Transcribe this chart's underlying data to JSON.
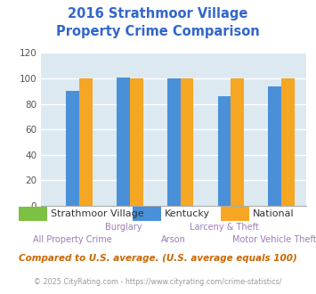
{
  "title_line1": "2016 Strathmoor Village",
  "title_line2": "Property Crime Comparison",
  "title_color": "#3366cc",
  "categories": [
    "All Property Crime",
    "Burglary",
    "Arson",
    "Larceny & Theft",
    "Motor Vehicle Theft"
  ],
  "upper_labels": [
    "",
    "Burglary",
    "",
    "Larceny & Theft",
    ""
  ],
  "lower_labels": [
    "All Property Crime",
    "",
    "Arson",
    "",
    "Motor Vehicle Theft"
  ],
  "series_names": [
    "Strathmoor Village",
    "Kentucky",
    "National"
  ],
  "series": {
    "Strathmoor Village": {
      "values": [
        0,
        0,
        0,
        0,
        0
      ],
      "color": "#7dc142"
    },
    "Kentucky": {
      "values": [
        90,
        101,
        100,
        86,
        94
      ],
      "color": "#4a90d9"
    },
    "National": {
      "values": [
        100,
        100,
        100,
        100,
        100
      ],
      "color": "#f5a623"
    }
  },
  "ylim": [
    0,
    120
  ],
  "yticks": [
    0,
    20,
    40,
    60,
    80,
    100,
    120
  ],
  "grid_color": "#ffffff",
  "bg_color": "#dce9f0",
  "xlabel_color": "#9e7bb5",
  "ylabel_color": "#666666",
  "footer_text": "Compared to U.S. average. (U.S. average equals 100)",
  "footer_color": "#cc6600",
  "copyright_text": "© 2025 CityRating.com - https://www.cityrating.com/crime-statistics/",
  "copyright_color": "#999999",
  "legend_text_color": "#333333"
}
